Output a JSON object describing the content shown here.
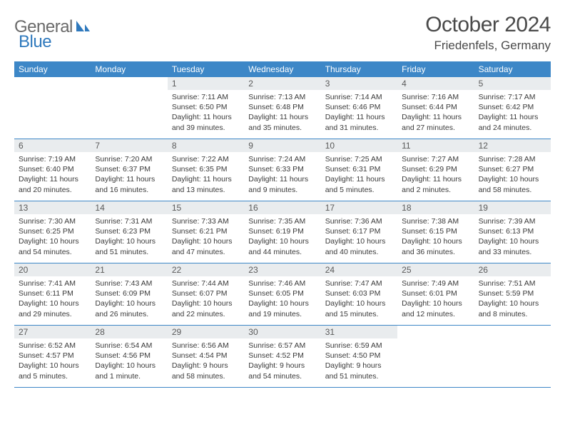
{
  "logo": {
    "word1": "General",
    "word2": "Blue"
  },
  "title": "October 2024",
  "location": "Friedenfels, Germany",
  "colors": {
    "header_bg": "#3d87c7",
    "header_text": "#ffffff",
    "daynum_bg": "#e9ecee",
    "row_border": "#3d87c7",
    "logo_gray": "#6a6a6a",
    "logo_blue": "#2f79bd",
    "body_text": "#3a3a3a"
  },
  "weekdays": [
    "Sunday",
    "Monday",
    "Tuesday",
    "Wednesday",
    "Thursday",
    "Friday",
    "Saturday"
  ],
  "weeks": [
    [
      {
        "n": "",
        "sr": "",
        "ss": "",
        "dl": "",
        "empty": true
      },
      {
        "n": "",
        "sr": "",
        "ss": "",
        "dl": "",
        "empty": true
      },
      {
        "n": "1",
        "sr": "Sunrise: 7:11 AM",
        "ss": "Sunset: 6:50 PM",
        "dl": "Daylight: 11 hours and 39 minutes."
      },
      {
        "n": "2",
        "sr": "Sunrise: 7:13 AM",
        "ss": "Sunset: 6:48 PM",
        "dl": "Daylight: 11 hours and 35 minutes."
      },
      {
        "n": "3",
        "sr": "Sunrise: 7:14 AM",
        "ss": "Sunset: 6:46 PM",
        "dl": "Daylight: 11 hours and 31 minutes."
      },
      {
        "n": "4",
        "sr": "Sunrise: 7:16 AM",
        "ss": "Sunset: 6:44 PM",
        "dl": "Daylight: 11 hours and 27 minutes."
      },
      {
        "n": "5",
        "sr": "Sunrise: 7:17 AM",
        "ss": "Sunset: 6:42 PM",
        "dl": "Daylight: 11 hours and 24 minutes."
      }
    ],
    [
      {
        "n": "6",
        "sr": "Sunrise: 7:19 AM",
        "ss": "Sunset: 6:40 PM",
        "dl": "Daylight: 11 hours and 20 minutes."
      },
      {
        "n": "7",
        "sr": "Sunrise: 7:20 AM",
        "ss": "Sunset: 6:37 PM",
        "dl": "Daylight: 11 hours and 16 minutes."
      },
      {
        "n": "8",
        "sr": "Sunrise: 7:22 AM",
        "ss": "Sunset: 6:35 PM",
        "dl": "Daylight: 11 hours and 13 minutes."
      },
      {
        "n": "9",
        "sr": "Sunrise: 7:24 AM",
        "ss": "Sunset: 6:33 PM",
        "dl": "Daylight: 11 hours and 9 minutes."
      },
      {
        "n": "10",
        "sr": "Sunrise: 7:25 AM",
        "ss": "Sunset: 6:31 PM",
        "dl": "Daylight: 11 hours and 5 minutes."
      },
      {
        "n": "11",
        "sr": "Sunrise: 7:27 AM",
        "ss": "Sunset: 6:29 PM",
        "dl": "Daylight: 11 hours and 2 minutes."
      },
      {
        "n": "12",
        "sr": "Sunrise: 7:28 AM",
        "ss": "Sunset: 6:27 PM",
        "dl": "Daylight: 10 hours and 58 minutes."
      }
    ],
    [
      {
        "n": "13",
        "sr": "Sunrise: 7:30 AM",
        "ss": "Sunset: 6:25 PM",
        "dl": "Daylight: 10 hours and 54 minutes."
      },
      {
        "n": "14",
        "sr": "Sunrise: 7:31 AM",
        "ss": "Sunset: 6:23 PM",
        "dl": "Daylight: 10 hours and 51 minutes."
      },
      {
        "n": "15",
        "sr": "Sunrise: 7:33 AM",
        "ss": "Sunset: 6:21 PM",
        "dl": "Daylight: 10 hours and 47 minutes."
      },
      {
        "n": "16",
        "sr": "Sunrise: 7:35 AM",
        "ss": "Sunset: 6:19 PM",
        "dl": "Daylight: 10 hours and 44 minutes."
      },
      {
        "n": "17",
        "sr": "Sunrise: 7:36 AM",
        "ss": "Sunset: 6:17 PM",
        "dl": "Daylight: 10 hours and 40 minutes."
      },
      {
        "n": "18",
        "sr": "Sunrise: 7:38 AM",
        "ss": "Sunset: 6:15 PM",
        "dl": "Daylight: 10 hours and 36 minutes."
      },
      {
        "n": "19",
        "sr": "Sunrise: 7:39 AM",
        "ss": "Sunset: 6:13 PM",
        "dl": "Daylight: 10 hours and 33 minutes."
      }
    ],
    [
      {
        "n": "20",
        "sr": "Sunrise: 7:41 AM",
        "ss": "Sunset: 6:11 PM",
        "dl": "Daylight: 10 hours and 29 minutes."
      },
      {
        "n": "21",
        "sr": "Sunrise: 7:43 AM",
        "ss": "Sunset: 6:09 PM",
        "dl": "Daylight: 10 hours and 26 minutes."
      },
      {
        "n": "22",
        "sr": "Sunrise: 7:44 AM",
        "ss": "Sunset: 6:07 PM",
        "dl": "Daylight: 10 hours and 22 minutes."
      },
      {
        "n": "23",
        "sr": "Sunrise: 7:46 AM",
        "ss": "Sunset: 6:05 PM",
        "dl": "Daylight: 10 hours and 19 minutes."
      },
      {
        "n": "24",
        "sr": "Sunrise: 7:47 AM",
        "ss": "Sunset: 6:03 PM",
        "dl": "Daylight: 10 hours and 15 minutes."
      },
      {
        "n": "25",
        "sr": "Sunrise: 7:49 AM",
        "ss": "Sunset: 6:01 PM",
        "dl": "Daylight: 10 hours and 12 minutes."
      },
      {
        "n": "26",
        "sr": "Sunrise: 7:51 AM",
        "ss": "Sunset: 5:59 PM",
        "dl": "Daylight: 10 hours and 8 minutes."
      }
    ],
    [
      {
        "n": "27",
        "sr": "Sunrise: 6:52 AM",
        "ss": "Sunset: 4:57 PM",
        "dl": "Daylight: 10 hours and 5 minutes."
      },
      {
        "n": "28",
        "sr": "Sunrise: 6:54 AM",
        "ss": "Sunset: 4:56 PM",
        "dl": "Daylight: 10 hours and 1 minute."
      },
      {
        "n": "29",
        "sr": "Sunrise: 6:56 AM",
        "ss": "Sunset: 4:54 PM",
        "dl": "Daylight: 9 hours and 58 minutes."
      },
      {
        "n": "30",
        "sr": "Sunrise: 6:57 AM",
        "ss": "Sunset: 4:52 PM",
        "dl": "Daylight: 9 hours and 54 minutes."
      },
      {
        "n": "31",
        "sr": "Sunrise: 6:59 AM",
        "ss": "Sunset: 4:50 PM",
        "dl": "Daylight: 9 hours and 51 minutes."
      },
      {
        "n": "",
        "sr": "",
        "ss": "",
        "dl": "",
        "empty": true
      },
      {
        "n": "",
        "sr": "",
        "ss": "",
        "dl": "",
        "empty": true
      }
    ]
  ]
}
